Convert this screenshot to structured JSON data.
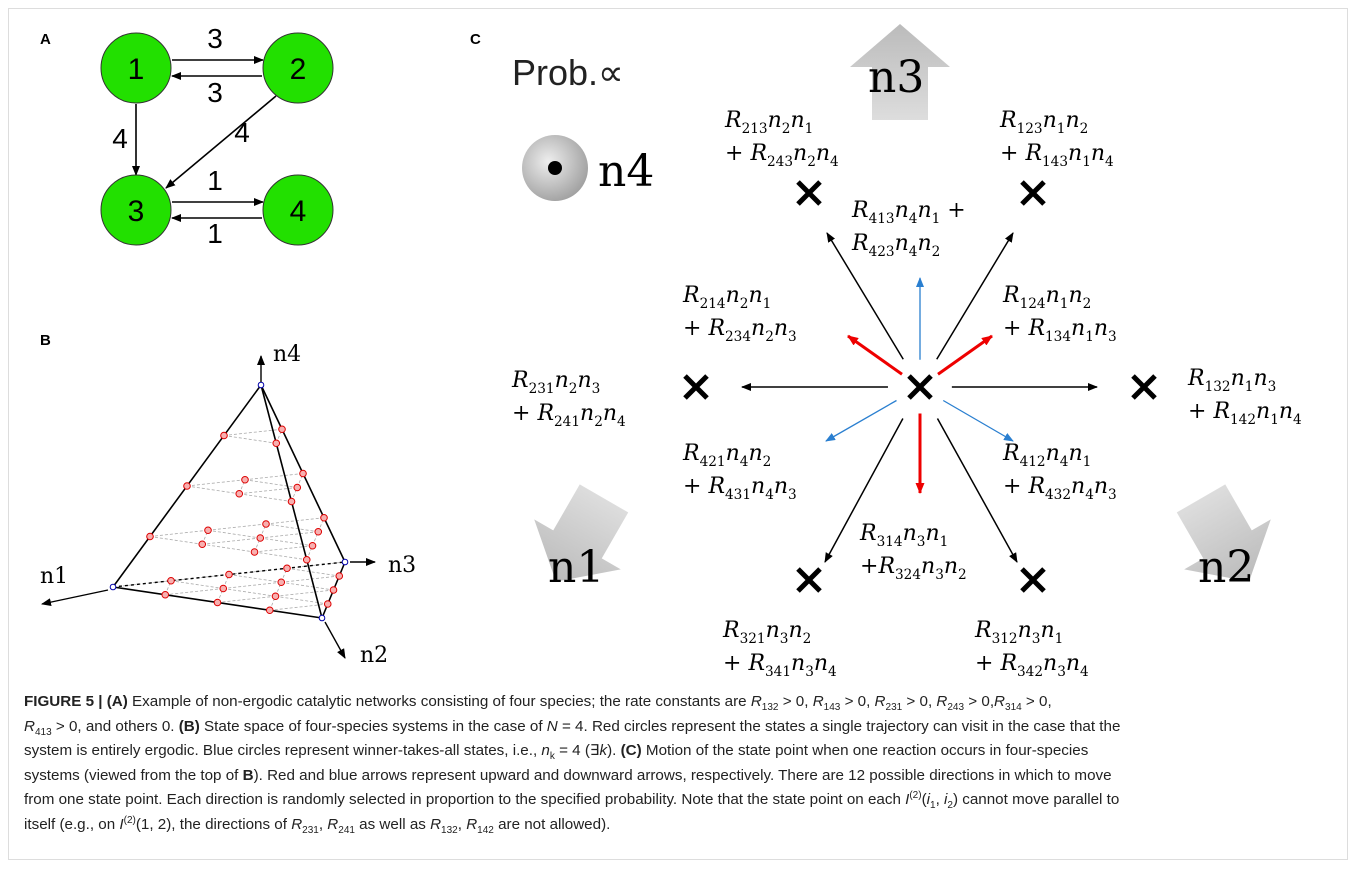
{
  "panels": {
    "a": {
      "label": "A",
      "nodes": [
        "1",
        "2",
        "3",
        "4"
      ],
      "edges": [
        "3",
        "3",
        "4",
        "4",
        "1",
        "1"
      ]
    },
    "b": {
      "label": "B",
      "axes": [
        [
          "n",
          "4"
        ],
        [
          "n",
          "1"
        ],
        [
          "n",
          "3"
        ],
        [
          "n",
          "2"
        ]
      ]
    },
    "c": {
      "label": "C",
      "legend_title": "Prob.∝",
      "legend_symbol": [
        "n",
        "4"
      ],
      "directions": [
        [
          "n",
          "3"
        ],
        [
          "n",
          "1"
        ],
        [
          "n",
          "2"
        ]
      ],
      "rates": [
        {
          "lines": [
            [
              [
                "R",
                "213"
              ],
              [
                "n",
                "2"
              ],
              [
                "n",
                "1"
              ]
            ],
            [
              "+ ",
              [
                "R",
                "243"
              ],
              [
                "n",
                "2"
              ],
              [
                "n",
                "4"
              ]
            ]
          ]
        },
        {
          "lines": [
            [
              [
                "R",
                "123"
              ],
              [
                "n",
                "1"
              ],
              [
                "n",
                "2"
              ]
            ],
            [
              "+ ",
              [
                "R",
                "143"
              ],
              [
                "n",
                "1"
              ],
              [
                "n",
                "4"
              ]
            ]
          ]
        },
        {
          "lines": [
            [
              [
                "R",
                "413"
              ],
              [
                "n",
                "4"
              ],
              [
                "n",
                "1"
              ],
              " +"
            ],
            [
              [
                "R",
                "423"
              ],
              [
                "n",
                "4"
              ],
              [
                "n",
                "2"
              ]
            ]
          ]
        },
        {
          "lines": [
            [
              [
                "R",
                "214"
              ],
              [
                "n",
                "2"
              ],
              [
                "n",
                "1"
              ]
            ],
            [
              "+ ",
              [
                "R",
                "234"
              ],
              [
                "n",
                "2"
              ],
              [
                "n",
                "3"
              ]
            ]
          ]
        },
        {
          "lines": [
            [
              [
                "R",
                "124"
              ],
              [
                "n",
                "1"
              ],
              [
                "n",
                "2"
              ]
            ],
            [
              "+ ",
              [
                "R",
                "134"
              ],
              [
                "n",
                "1"
              ],
              [
                "n",
                "3"
              ]
            ]
          ]
        },
        {
          "lines": [
            [
              [
                "R",
                "231"
              ],
              [
                "n",
                "2"
              ],
              [
                "n",
                "3"
              ]
            ],
            [
              "+ ",
              [
                "R",
                "241"
              ],
              [
                "n",
                "2"
              ],
              [
                "n",
                "4"
              ]
            ]
          ]
        },
        {
          "lines": [
            [
              [
                "R",
                "132"
              ],
              [
                "n",
                "1"
              ],
              [
                "n",
                "3"
              ]
            ],
            [
              "+ ",
              [
                "R",
                "142"
              ],
              [
                "n",
                "1"
              ],
              [
                "n",
                "4"
              ]
            ]
          ]
        },
        {
          "lines": [
            [
              [
                "R",
                "421"
              ],
              [
                "n",
                "4"
              ],
              [
                "n",
                "2"
              ]
            ],
            [
              "+ ",
              [
                "R",
                "431"
              ],
              [
                "n",
                "4"
              ],
              [
                "n",
                "3"
              ]
            ]
          ]
        },
        {
          "lines": [
            [
              [
                "R",
                "412"
              ],
              [
                "n",
                "4"
              ],
              [
                "n",
                "1"
              ]
            ],
            [
              "+ ",
              [
                "R",
                "432"
              ],
              [
                "n",
                "4"
              ],
              [
                "n",
                "3"
              ]
            ]
          ]
        },
        {
          "lines": [
            [
              [
                "R",
                "314"
              ],
              [
                "n",
                "3"
              ],
              [
                "n",
                "1"
              ]
            ],
            [
              "+",
              [
                "R",
                "324"
              ],
              [
                "n",
                "3"
              ],
              [
                "n",
                "2"
              ]
            ]
          ]
        },
        {
          "lines": [
            [
              [
                "R",
                "321"
              ],
              [
                "n",
                "3"
              ],
              [
                "n",
                "2"
              ]
            ],
            [
              "+ ",
              [
                "R",
                "341"
              ],
              [
                "n",
                "3"
              ],
              [
                "n",
                "4"
              ]
            ]
          ]
        },
        {
          "lines": [
            [
              [
                "R",
                "312"
              ],
              [
                "n",
                "3"
              ],
              [
                "n",
                "1"
              ]
            ],
            [
              "+ ",
              [
                "R",
                "342"
              ],
              [
                "n",
                "3"
              ],
              [
                "n",
                "4"
              ]
            ]
          ]
        }
      ]
    }
  },
  "caption": {
    "lines": [
      [
        {
          "b": "FIGURE 5 | (A)"
        },
        {
          "t": " Example of non-ergodic catalytic networks consisting of four species; the rate constants are "
        },
        {
          "i": "R"
        },
        {
          "sub": "132"
        },
        {
          "t": " > 0, "
        },
        {
          "i": "R"
        },
        {
          "sub": "143"
        },
        {
          "t": " > 0, "
        },
        {
          "i": "R"
        },
        {
          "sub": "231"
        },
        {
          "t": " > 0, "
        },
        {
          "i": "R"
        },
        {
          "sub": "243"
        },
        {
          "t": " > 0,"
        },
        {
          "i": "R"
        },
        {
          "sub": "314"
        },
        {
          "t": " > 0,"
        }
      ],
      [
        {
          "i": "R"
        },
        {
          "sub": "413"
        },
        {
          "t": " > 0, and others 0. "
        },
        {
          "b": "(B)"
        },
        {
          "t": " State space of four-species systems in the case of "
        },
        {
          "i": "N"
        },
        {
          "t": " = 4. Red circles represent the states a single trajectory can visit in the case that the"
        }
      ],
      [
        {
          "t": "system is entirely ergodic. Blue circles represent winner-takes-all states, i.e., "
        },
        {
          "i": "n"
        },
        {
          "sub": "k"
        },
        {
          "t": " = 4 (∃"
        },
        {
          "i": "k"
        },
        {
          "t": "). "
        },
        {
          "b": "(C)"
        },
        {
          "t": " Motion of the state point when one reaction occurs in four-species"
        }
      ],
      [
        {
          "t": "systems (viewed from the top of "
        },
        {
          "b": "B"
        },
        {
          "t": "). Red and blue arrows represent upward and downward arrows, respectively. There are 12 possible directions in which to move"
        }
      ],
      [
        {
          "t": "from one state point. Each direction is randomly selected in proportion to the specified probability. Note that the state point on each "
        },
        {
          "i": "I"
        },
        {
          "sup": "(2)"
        },
        {
          "t": "("
        },
        {
          "i": "i"
        },
        {
          "sub": "1"
        },
        {
          "t": ", "
        },
        {
          "i": "i"
        },
        {
          "sub": "2"
        },
        {
          "t": ") cannot move parallel to"
        }
      ],
      [
        {
          "t": "itself (e.g., on "
        },
        {
          "i": "I"
        },
        {
          "sup": "(2)"
        },
        {
          "t": "(1, 2), the directions of "
        },
        {
          "i": "R"
        },
        {
          "sub": "231"
        },
        {
          "t": ", "
        },
        {
          "i": "R"
        },
        {
          "sub": "241"
        },
        {
          "t": " as well as "
        },
        {
          "i": "R"
        },
        {
          "sub": "132"
        },
        {
          "t": ", "
        },
        {
          "i": "R"
        },
        {
          "sub": "142"
        },
        {
          "t": " are not allowed)."
        }
      ]
    ]
  }
}
